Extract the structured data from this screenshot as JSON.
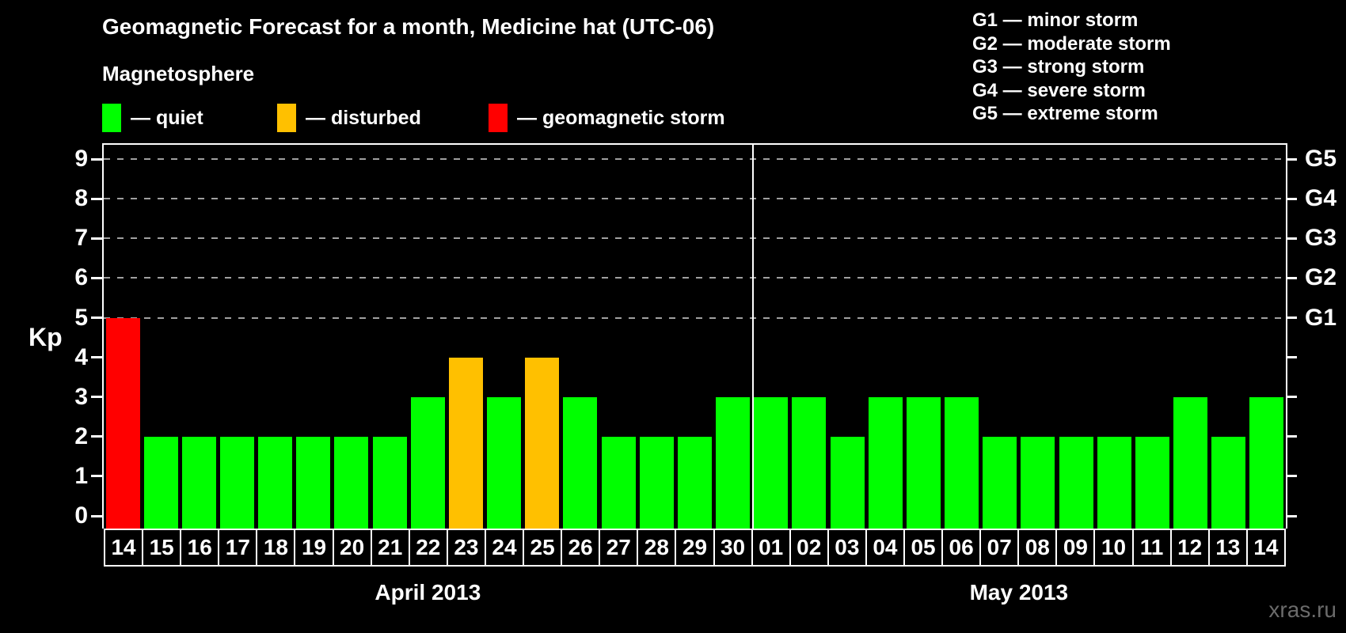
{
  "title": "Geomagnetic Forecast for a month, Medicine hat (UTC-06)",
  "subtitle": "Magnetosphere",
  "legend": {
    "items": [
      {
        "status": "quiet",
        "label": "— quiet",
        "color": "#00FF00"
      },
      {
        "status": "disturbed",
        "label": "— disturbed",
        "color": "#FFC000"
      },
      {
        "status": "storm",
        "label": "— geomagnetic storm",
        "color": "#FF0000"
      }
    ]
  },
  "g_legend": {
    "items": [
      {
        "label": "G1 — minor storm"
      },
      {
        "label": "G2 — moderate storm"
      },
      {
        "label": "G3 — strong storm"
      },
      {
        "label": "G4 — severe storm"
      },
      {
        "label": "G5 — extreme storm"
      }
    ]
  },
  "watermark": "xras.ru",
  "chart_data": {
    "type": "bar",
    "title": "Geomagnetic Forecast for a month, Medicine hat (UTC-06)",
    "ylabel": "Kp",
    "ylim": [
      0,
      9
    ],
    "yticks": [
      0,
      1,
      2,
      3,
      4,
      5,
      6,
      7,
      8,
      9
    ],
    "grid_levels": [
      5,
      6,
      7,
      8,
      9
    ],
    "grid_color": "#A0A0A0",
    "right_axis_labels": [
      {
        "level": 5,
        "label": "G1"
      },
      {
        "level": 6,
        "label": "G2"
      },
      {
        "level": 7,
        "label": "G3"
      },
      {
        "level": 8,
        "label": "G4"
      },
      {
        "level": 9,
        "label": "G5"
      }
    ],
    "colors": {
      "quiet": "#00FF00",
      "disturbed": "#FFC000",
      "storm": "#FF0000"
    },
    "months": [
      {
        "label": "April 2013",
        "days": 17
      },
      {
        "label": "May 2013",
        "days": 14
      }
    ],
    "categories": [
      "14",
      "15",
      "16",
      "17",
      "18",
      "19",
      "20",
      "21",
      "22",
      "23",
      "24",
      "25",
      "26",
      "27",
      "28",
      "29",
      "30",
      "01",
      "02",
      "03",
      "04",
      "05",
      "06",
      "07",
      "08",
      "09",
      "10",
      "11",
      "12",
      "13",
      "14"
    ],
    "values": [
      5,
      2,
      2,
      2,
      2,
      2,
      2,
      2,
      3,
      4,
      3,
      4,
      3,
      2,
      2,
      2,
      3,
      3,
      3,
      2,
      3,
      3,
      3,
      2,
      2,
      2,
      2,
      2,
      3,
      2,
      3
    ],
    "statuses": [
      "storm",
      "quiet",
      "quiet",
      "quiet",
      "quiet",
      "quiet",
      "quiet",
      "quiet",
      "quiet",
      "disturbed",
      "quiet",
      "disturbed",
      "quiet",
      "quiet",
      "quiet",
      "quiet",
      "quiet",
      "quiet",
      "quiet",
      "quiet",
      "quiet",
      "quiet",
      "quiet",
      "quiet",
      "quiet",
      "quiet",
      "quiet",
      "quiet",
      "quiet",
      "quiet",
      "quiet"
    ]
  }
}
